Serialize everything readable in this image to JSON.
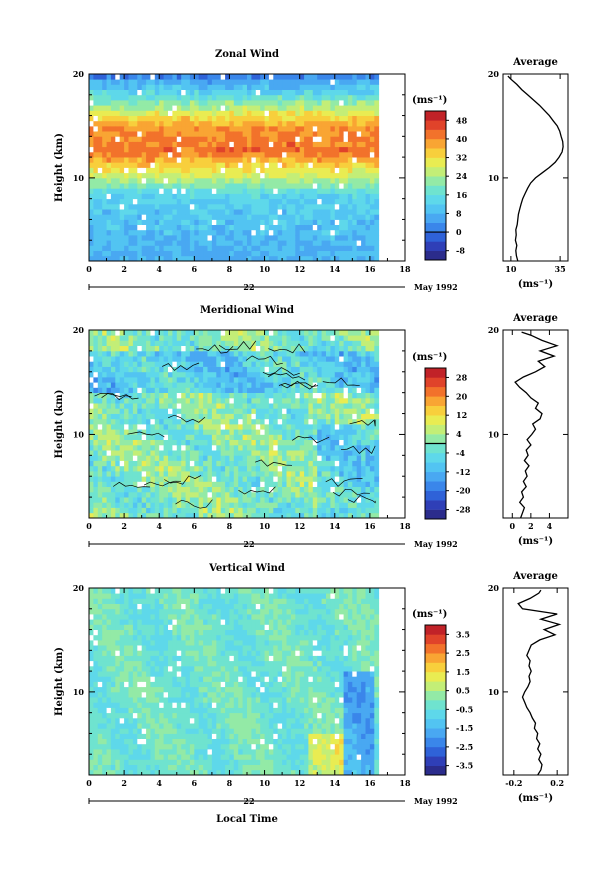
{
  "chart_data": [
    {
      "type": "heatmap",
      "title": "Zonal Wind",
      "xlabel": "",
      "ylabel": "Height (km)",
      "xlim": [
        0,
        18
      ],
      "ylim": [
        2,
        20
      ],
      "x_ticks": [
        "0",
        "2",
        "4",
        "6",
        "8",
        "10",
        "12",
        "14",
        "16",
        "18"
      ],
      "y_ticks": [
        "10",
        "20"
      ],
      "data_time_range": [
        0,
        16.3
      ],
      "date_axis": {
        "day_label": "22",
        "month_label": "May 1992"
      },
      "colorbar": {
        "unit": "(ms⁻¹)",
        "labels": [
          "-8",
          "0",
          "8",
          "16",
          "24",
          "32",
          "40",
          "48"
        ],
        "range": [
          -12,
          52
        ],
        "zero_line": 0
      },
      "profile": {
        "title": "Average",
        "xlabel": "(ms⁻¹)",
        "x_ticks": [
          "10",
          "35"
        ],
        "y_ticks": [
          "10",
          "20"
        ],
        "xlim": [
          6,
          39
        ],
        "points": [
          [
            13.5,
            2.0
          ],
          [
            12.8,
            2.5
          ],
          [
            12.5,
            3.0
          ],
          [
            13.0,
            3.5
          ],
          [
            12.3,
            4.0
          ],
          [
            12.7,
            4.5
          ],
          [
            12.5,
            5.0
          ],
          [
            13.2,
            5.5
          ],
          [
            13.5,
            6.0
          ],
          [
            13.8,
            6.5
          ],
          [
            14.5,
            7.0
          ],
          [
            15.2,
            7.5
          ],
          [
            16.0,
            8.0
          ],
          [
            17.2,
            8.5
          ],
          [
            18.5,
            9.0
          ],
          [
            20.0,
            9.5
          ],
          [
            22.5,
            10.0
          ],
          [
            26.0,
            10.5
          ],
          [
            29.5,
            11.0
          ],
          [
            32.5,
            11.5
          ],
          [
            34.5,
            12.0
          ],
          [
            36.0,
            12.5
          ],
          [
            36.5,
            13.0
          ],
          [
            36.3,
            13.5
          ],
          [
            35.5,
            14.0
          ],
          [
            34.8,
            14.5
          ],
          [
            33.5,
            15.0
          ],
          [
            31.5,
            15.5
          ],
          [
            29.5,
            16.0
          ],
          [
            27.0,
            16.5
          ],
          [
            24.5,
            17.0
          ],
          [
            21.5,
            17.5
          ],
          [
            18.5,
            18.0
          ],
          [
            15.5,
            18.5
          ],
          [
            13.0,
            19.0
          ],
          [
            10.0,
            19.5
          ],
          [
            8.5,
            19.8
          ]
        ]
      }
    },
    {
      "type": "heatmap",
      "title": "Meridional Wind",
      "xlabel": "",
      "ylabel": "Height (km)",
      "xlim": [
        0,
        18
      ],
      "ylim": [
        2,
        20
      ],
      "x_ticks": [
        "0",
        "2",
        "4",
        "6",
        "8",
        "10",
        "12",
        "14",
        "16",
        "18"
      ],
      "y_ticks": [
        "10",
        "20"
      ],
      "data_time_range": [
        0,
        16.3
      ],
      "date_axis": {
        "day_label": "22",
        "month_label": "May 1992"
      },
      "colorbar": {
        "unit": "(ms⁻¹)",
        "labels": [
          "-28",
          "-20",
          "-12",
          "-4",
          "4",
          "12",
          "20",
          "28"
        ],
        "range": [
          -32,
          32
        ],
        "zero_line": 0
      },
      "profile": {
        "title": "Average",
        "xlabel": "(ms⁻¹)",
        "x_ticks": [
          "0",
          "2",
          "4"
        ],
        "y_ticks": [
          "10",
          "20"
        ],
        "xlim": [
          -1,
          6
        ],
        "points": [
          [
            0.9,
            2.0
          ],
          [
            1.1,
            2.5
          ],
          [
            1.3,
            3.0
          ],
          [
            0.8,
            3.5
          ],
          [
            1.2,
            4.0
          ],
          [
            1.0,
            4.5
          ],
          [
            1.5,
            5.0
          ],
          [
            1.2,
            5.5
          ],
          [
            1.6,
            6.0
          ],
          [
            1.4,
            6.5
          ],
          [
            1.8,
            7.0
          ],
          [
            1.3,
            7.5
          ],
          [
            1.7,
            8.0
          ],
          [
            1.5,
            8.5
          ],
          [
            2.0,
            9.0
          ],
          [
            1.6,
            9.5
          ],
          [
            2.1,
            10.0
          ],
          [
            2.5,
            10.5
          ],
          [
            2.2,
            11.0
          ],
          [
            3.0,
            11.5
          ],
          [
            3.2,
            12.0
          ],
          [
            2.5,
            12.5
          ],
          [
            2.8,
            13.0
          ],
          [
            2.0,
            13.5
          ],
          [
            1.5,
            14.0
          ],
          [
            0.8,
            14.5
          ],
          [
            0.3,
            15.0
          ],
          [
            1.2,
            15.5
          ],
          [
            2.5,
            16.0
          ],
          [
            3.5,
            16.5
          ],
          [
            2.8,
            17.0
          ],
          [
            4.5,
            17.5
          ],
          [
            3.0,
            18.0
          ],
          [
            4.8,
            18.5
          ],
          [
            3.2,
            19.0
          ],
          [
            2.0,
            19.5
          ],
          [
            1.0,
            19.8
          ]
        ]
      }
    },
    {
      "type": "heatmap",
      "title": "Vertical Wind",
      "xlabel": "Local Time",
      "ylabel": "Height (km)",
      "xlim": [
        0,
        18
      ],
      "ylim": [
        2,
        20
      ],
      "x_ticks": [
        "0",
        "2",
        "4",
        "6",
        "8",
        "10",
        "12",
        "14",
        "16",
        "18"
      ],
      "y_ticks": [
        "10",
        "20"
      ],
      "data_time_range": [
        0,
        16.3
      ],
      "date_axis": {
        "day_label": "22",
        "month_label": "May 1992"
      },
      "colorbar": {
        "unit": "(ms⁻¹)",
        "labels": [
          "-3.5",
          "-2.5",
          "-1.5",
          "-0.5",
          "0.5",
          "1.5",
          "2.5",
          "3.5"
        ],
        "range": [
          -4,
          4
        ],
        "zero_line": null
      },
      "profile": {
        "title": "Average",
        "xlabel": "(ms⁻¹)",
        "x_ticks": [
          "-0.2",
          "0.2"
        ],
        "y_ticks": [
          "10",
          "20"
        ],
        "xlim": [
          -0.3,
          0.3
        ],
        "points": [
          [
            0.02,
            2.0
          ],
          [
            0.05,
            2.5
          ],
          [
            0.06,
            3.0
          ],
          [
            0.03,
            3.5
          ],
          [
            0.05,
            4.0
          ],
          [
            0.02,
            4.5
          ],
          [
            0.04,
            5.0
          ],
          [
            0.01,
            5.5
          ],
          [
            0.02,
            6.0
          ],
          [
            -0.01,
            6.5
          ],
          [
            0.0,
            7.0
          ],
          [
            -0.03,
            7.5
          ],
          [
            -0.05,
            8.0
          ],
          [
            -0.08,
            8.5
          ],
          [
            -0.1,
            9.0
          ],
          [
            -0.12,
            9.5
          ],
          [
            -0.1,
            10.0
          ],
          [
            -0.07,
            10.5
          ],
          [
            -0.05,
            11.0
          ],
          [
            -0.06,
            11.5
          ],
          [
            -0.04,
            12.0
          ],
          [
            -0.06,
            12.5
          ],
          [
            -0.05,
            13.0
          ],
          [
            -0.08,
            13.5
          ],
          [
            -0.06,
            14.0
          ],
          [
            -0.04,
            14.5
          ],
          [
            0.04,
            15.0
          ],
          [
            0.18,
            15.5
          ],
          [
            0.08,
            16.0
          ],
          [
            0.22,
            16.5
          ],
          [
            0.05,
            17.0
          ],
          [
            0.2,
            17.5
          ],
          [
            -0.12,
            18.0
          ],
          [
            -0.16,
            18.5
          ],
          [
            -0.05,
            19.0
          ],
          [
            0.03,
            19.5
          ],
          [
            0.05,
            19.8
          ]
        ]
      }
    }
  ]
}
